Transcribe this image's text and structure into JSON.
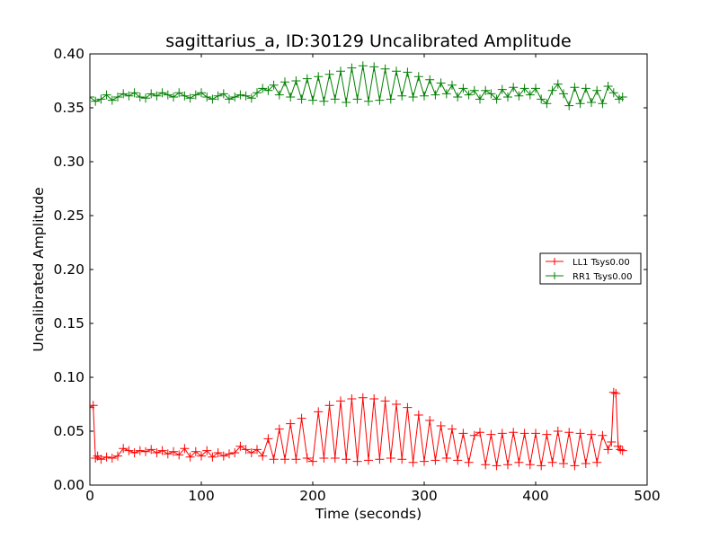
{
  "chart_data": {
    "type": "line",
    "title": "sagittarius_a, ID:30129 Uncalibrated Amplitude",
    "xlabel": "Time (seconds)",
    "ylabel": "Uncalibrated Amplitude",
    "xlim": [
      0,
      500
    ],
    "ylim": [
      0.0,
      0.4
    ],
    "x_ticks": [
      0,
      100,
      200,
      300,
      400,
      500
    ],
    "y_ticks": [
      0.0,
      0.05,
      0.1,
      0.15,
      0.2,
      0.25,
      0.3,
      0.35,
      0.4
    ],
    "x_tick_labels": [
      "0",
      "100",
      "200",
      "300",
      "400",
      "500"
    ],
    "y_tick_labels": [
      "0.00",
      "0.05",
      "0.10",
      "0.15",
      "0.20",
      "0.25",
      "0.30",
      "0.35",
      "0.40"
    ],
    "grid": false,
    "legend_position": "center-right",
    "marker": "+",
    "series": [
      {
        "name": "LL1 Tsys0.00",
        "color": "#ff0000",
        "x": [
          0,
          3,
          5,
          7,
          10,
          15,
          20,
          25,
          30,
          35,
          40,
          45,
          50,
          55,
          60,
          65,
          70,
          75,
          80,
          85,
          90,
          95,
          100,
          105,
          110,
          115,
          120,
          125,
          130,
          135,
          140,
          145,
          150,
          155,
          160,
          165,
          170,
          175,
          180,
          185,
          190,
          195,
          200,
          205,
          210,
          215,
          220,
          225,
          230,
          235,
          240,
          245,
          250,
          255,
          260,
          265,
          270,
          275,
          280,
          285,
          290,
          295,
          300,
          305,
          310,
          315,
          320,
          325,
          330,
          335,
          340,
          345,
          350,
          355,
          360,
          365,
          370,
          375,
          380,
          385,
          390,
          395,
          400,
          405,
          410,
          415,
          420,
          425,
          430,
          435,
          440,
          445,
          450,
          455,
          460,
          465,
          468,
          470,
          472,
          474,
          476,
          478
        ],
        "y": [
          0.072,
          0.074,
          0.025,
          0.027,
          0.024,
          0.026,
          0.025,
          0.027,
          0.034,
          0.032,
          0.03,
          0.032,
          0.031,
          0.033,
          0.03,
          0.032,
          0.029,
          0.031,
          0.028,
          0.034,
          0.026,
          0.031,
          0.027,
          0.032,
          0.026,
          0.03,
          0.027,
          0.029,
          0.03,
          0.036,
          0.033,
          0.03,
          0.033,
          0.027,
          0.043,
          0.024,
          0.052,
          0.024,
          0.057,
          0.024,
          0.062,
          0.025,
          0.022,
          0.068,
          0.025,
          0.074,
          0.025,
          0.078,
          0.024,
          0.08,
          0.022,
          0.081,
          0.023,
          0.08,
          0.024,
          0.078,
          0.025,
          0.075,
          0.024,
          0.072,
          0.021,
          0.065,
          0.022,
          0.06,
          0.023,
          0.055,
          0.025,
          0.052,
          0.023,
          0.048,
          0.021,
          0.046,
          0.049,
          0.019,
          0.047,
          0.018,
          0.048,
          0.019,
          0.049,
          0.021,
          0.048,
          0.019,
          0.048,
          0.018,
          0.047,
          0.021,
          0.05,
          0.02,
          0.049,
          0.018,
          0.048,
          0.02,
          0.047,
          0.021,
          0.046,
          0.033,
          0.04,
          0.086,
          0.085,
          0.036,
          0.033,
          0.032
        ]
      },
      {
        "name": "RR1 Tsys0.00",
        "color": "#008000",
        "x": [
          0,
          5,
          10,
          15,
          20,
          25,
          30,
          35,
          40,
          45,
          50,
          55,
          60,
          65,
          70,
          75,
          80,
          85,
          90,
          95,
          100,
          105,
          110,
          115,
          120,
          125,
          130,
          135,
          140,
          145,
          150,
          155,
          160,
          165,
          170,
          175,
          180,
          185,
          190,
          195,
          200,
          205,
          210,
          215,
          220,
          225,
          230,
          235,
          240,
          245,
          250,
          255,
          260,
          265,
          270,
          275,
          280,
          285,
          290,
          295,
          300,
          305,
          310,
          315,
          320,
          325,
          330,
          335,
          340,
          345,
          350,
          355,
          360,
          365,
          370,
          375,
          380,
          385,
          390,
          395,
          400,
          405,
          410,
          415,
          420,
          425,
          430,
          435,
          440,
          445,
          450,
          455,
          460,
          465,
          470,
          475,
          478
        ],
        "y": [
          0.36,
          0.356,
          0.358,
          0.362,
          0.357,
          0.36,
          0.363,
          0.361,
          0.364,
          0.36,
          0.359,
          0.363,
          0.361,
          0.364,
          0.362,
          0.36,
          0.364,
          0.361,
          0.359,
          0.362,
          0.364,
          0.36,
          0.358,
          0.361,
          0.363,
          0.358,
          0.36,
          0.362,
          0.361,
          0.359,
          0.364,
          0.368,
          0.366,
          0.371,
          0.362,
          0.374,
          0.36,
          0.375,
          0.358,
          0.377,
          0.357,
          0.379,
          0.356,
          0.381,
          0.358,
          0.384,
          0.355,
          0.387,
          0.358,
          0.389,
          0.356,
          0.388,
          0.357,
          0.386,
          0.358,
          0.384,
          0.361,
          0.383,
          0.36,
          0.379,
          0.361,
          0.376,
          0.362,
          0.373,
          0.363,
          0.371,
          0.36,
          0.368,
          0.362,
          0.366,
          0.358,
          0.366,
          0.363,
          0.358,
          0.367,
          0.36,
          0.369,
          0.361,
          0.368,
          0.362,
          0.368,
          0.358,
          0.354,
          0.366,
          0.372,
          0.363,
          0.352,
          0.369,
          0.354,
          0.368,
          0.355,
          0.366,
          0.354,
          0.37,
          0.364,
          0.358,
          0.36
        ]
      }
    ]
  }
}
